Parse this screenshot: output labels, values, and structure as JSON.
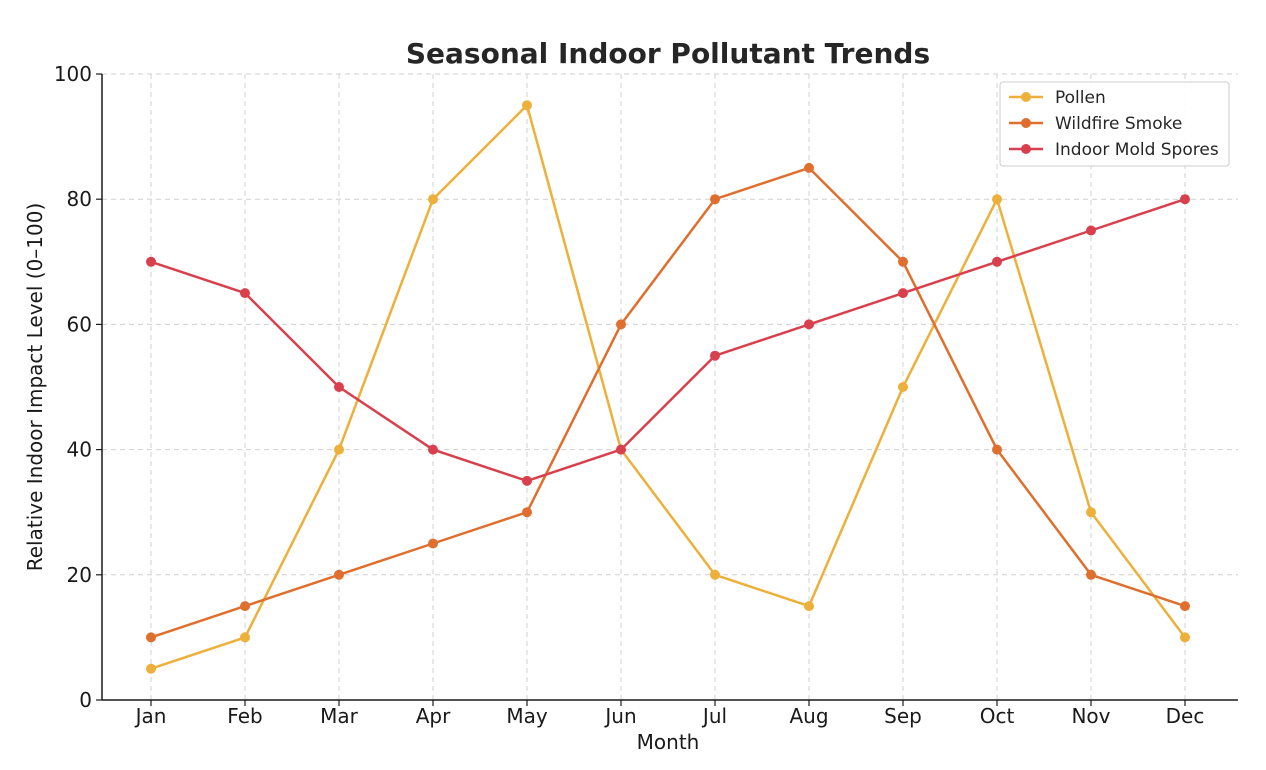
{
  "chart_data": {
    "type": "line",
    "title": "Seasonal Indoor Pollutant Trends",
    "xlabel": "Month",
    "ylabel": "Relative Indoor Impact Level (0–100)",
    "categories": [
      "Jan",
      "Feb",
      "Mar",
      "Apr",
      "May",
      "Jun",
      "Jul",
      "Aug",
      "Sep",
      "Oct",
      "Nov",
      "Dec"
    ],
    "ylim": [
      0,
      100
    ],
    "yticks": [
      0,
      20,
      40,
      60,
      80,
      100
    ],
    "grid": true,
    "legend_position": "top-right",
    "series": [
      {
        "name": "Pollen",
        "color": "#EDB03A",
        "values": [
          5,
          10,
          40,
          80,
          95,
          40,
          20,
          15,
          50,
          80,
          30,
          10
        ]
      },
      {
        "name": "Wildfire Smoke",
        "color": "#DF6F2E",
        "values": [
          10,
          15,
          20,
          25,
          30,
          60,
          80,
          85,
          70,
          40,
          20,
          15
        ]
      },
      {
        "name": "Indoor Mold Spores",
        "color": "#D9404E",
        "values": [
          70,
          65,
          50,
          40,
          35,
          40,
          55,
          60,
          65,
          70,
          75,
          80
        ]
      }
    ]
  }
}
